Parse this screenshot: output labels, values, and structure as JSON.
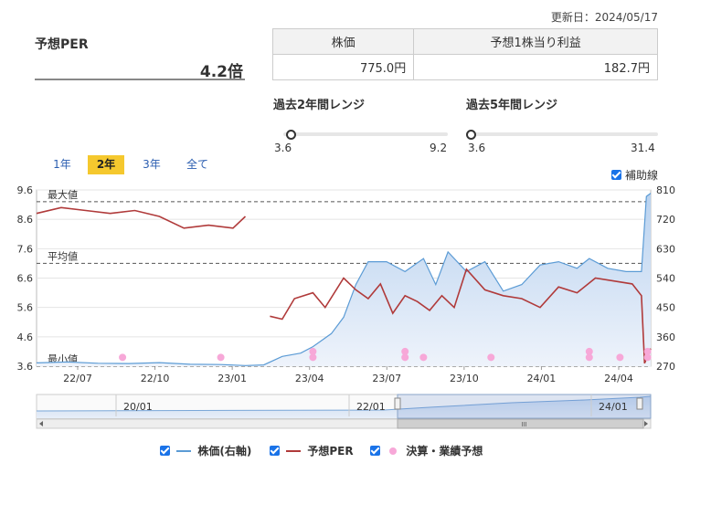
{
  "updated": "更新日：2024/05/17",
  "per": {
    "label": "予想PER",
    "value": "4.2倍"
  },
  "stats": {
    "headers": [
      "株価",
      "予想1株当り利益"
    ],
    "values": [
      "775.0円",
      "182.7円"
    ]
  },
  "ranges": [
    {
      "title": "過去2年間レンジ",
      "min": "3.6",
      "max": "9.2",
      "level": 0.0
    },
    {
      "title": "過去5年間レンジ",
      "min": "3.6",
      "max": "31.4",
      "level": 0.0
    }
  ],
  "periods": [
    "1年",
    "2年",
    "3年",
    "全て"
  ],
  "active_period": "2年",
  "aux_label": "補助線",
  "ref_lines": {
    "max": "最大値",
    "avg": "平均値",
    "min": "最小値"
  },
  "navigator": {
    "labels": [
      "20/01",
      "22/01",
      "24/01"
    ],
    "scroll_grip": "III"
  },
  "legend": {
    "price": "株価(右軸)",
    "per": "予想PER",
    "earnings": "決算・業績予想"
  },
  "colors": {
    "price": "#5b9bd5",
    "per": "#b03a3a",
    "earnings": "#f7a8d8",
    "accent": "#f5c82e",
    "checkbox": "#1a73e8"
  },
  "chart_data": {
    "type": "line",
    "x_ticks": [
      "22/07",
      "22/10",
      "23/01",
      "23/04",
      "23/07",
      "23/10",
      "24/01",
      "24/04"
    ],
    "y_left": {
      "ticks": [
        "9.6",
        "8.6",
        "7.6",
        "6.6",
        "5.6",
        "4.6",
        "3.6"
      ],
      "range": [
        3.6,
        9.6
      ]
    },
    "y_right": {
      "ticks": [
        "810",
        "720",
        "630",
        "540",
        "450",
        "360",
        "270"
      ],
      "range": [
        270,
        810
      ]
    },
    "reference_levels": {
      "max": 9.2,
      "avg": 7.1,
      "min": 3.6
    },
    "series": [
      {
        "name": "株価(右軸)",
        "axis": "right",
        "x": [
          0.0,
          0.05,
          0.1,
          0.15,
          0.2,
          0.25,
          0.3,
          0.34,
          0.37,
          0.4,
          0.43,
          0.45,
          0.48,
          0.5,
          0.52,
          0.54,
          0.57,
          0.6,
          0.63,
          0.65,
          0.67,
          0.7,
          0.73,
          0.76,
          0.79,
          0.82,
          0.85,
          0.88,
          0.9,
          0.93,
          0.96,
          0.985,
          0.993,
          1.0
        ],
        "y": [
          280,
          283,
          279,
          278,
          281,
          276,
          275,
          272,
          274,
          300,
          310,
          330,
          370,
          420,
          520,
          590,
          590,
          560,
          600,
          520,
          620,
          560,
          590,
          500,
          520,
          580,
          590,
          570,
          600,
          570,
          560,
          560,
          790,
          800
        ]
      },
      {
        "name": "予想PER",
        "axis": "left",
        "x": [
          0.0,
          0.04,
          0.08,
          0.12,
          0.16,
          0.2,
          0.24,
          0.28,
          0.32,
          0.34,
          0.36,
          0.38,
          0.4,
          0.42,
          0.45,
          0.47,
          0.5,
          0.52,
          0.54,
          0.56,
          0.58,
          0.6,
          0.62,
          0.64,
          0.66,
          0.68,
          0.7,
          0.73,
          0.76,
          0.79,
          0.82,
          0.85,
          0.88,
          0.91,
          0.94,
          0.97,
          0.985,
          0.99,
          1.0
        ],
        "y": [
          8.8,
          9.0,
          8.9,
          8.8,
          8.9,
          8.7,
          8.3,
          8.4,
          8.3,
          8.7,
          null,
          5.3,
          5.2,
          5.9,
          6.1,
          5.6,
          6.6,
          6.2,
          5.9,
          6.4,
          5.4,
          6.0,
          5.8,
          5.5,
          6.0,
          5.6,
          6.9,
          6.2,
          6.0,
          5.9,
          5.6,
          6.3,
          6.1,
          6.6,
          6.5,
          6.4,
          6.0,
          3.7,
          4.2
        ]
      },
      {
        "name": "決算・業績予想",
        "type": "scatter",
        "axis": "left",
        "x": [
          0.14,
          0.3,
          0.45,
          0.45,
          0.6,
          0.6,
          0.63,
          0.74,
          0.9,
          0.9,
          0.95,
          0.995,
          0.995
        ],
        "y": [
          3.9,
          3.9,
          4.1,
          3.9,
          4.1,
          3.9,
          3.9,
          3.9,
          4.1,
          3.9,
          3.9,
          4.1,
          3.9
        ]
      }
    ]
  }
}
